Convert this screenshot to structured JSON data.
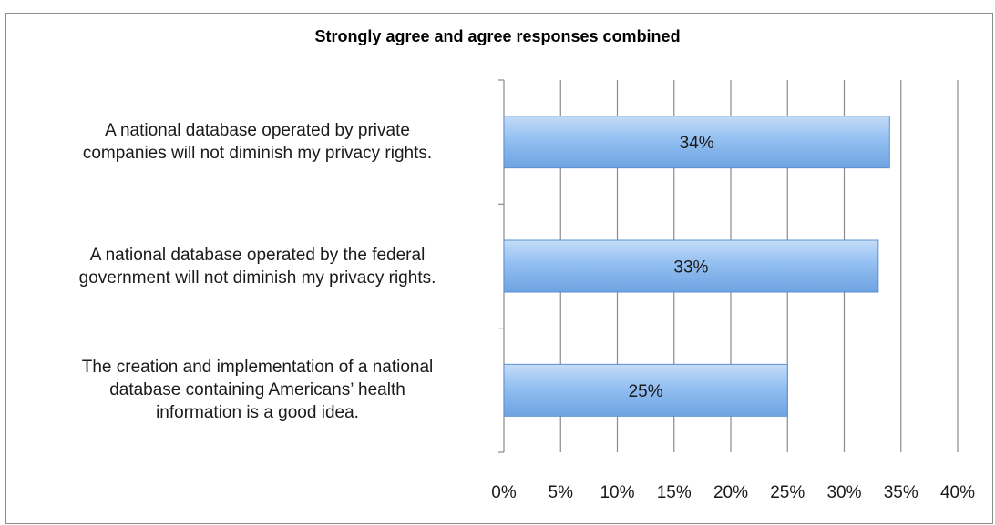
{
  "chart_data": {
    "type": "bar",
    "orientation": "horizontal",
    "title": "Strongly agree and agree responses combined",
    "categories": [
      "A national database operated by private companies will not diminish my privacy rights.",
      "A national database operated by the federal government will not diminish my privacy rights.",
      "The creation and implementation of a national database containing Americans’ health information is a good idea."
    ],
    "category_lines": [
      [
        "A national database operated by private",
        "companies will not diminish my privacy rights."
      ],
      [
        "A national database operated by the federal",
        "government will not diminish my privacy rights."
      ],
      [
        "The creation and implementation of a national",
        "database containing Americans’ health",
        "information is a good idea."
      ]
    ],
    "values": [
      34,
      33,
      25
    ],
    "data_labels": [
      "34%",
      "33%",
      "25%"
    ],
    "xlim": [
      0,
      40
    ],
    "x_ticks": [
      0,
      5,
      10,
      15,
      20,
      25,
      30,
      35,
      40
    ],
    "x_tick_labels": [
      "0%",
      "5%",
      "10%",
      "15%",
      "20%",
      "25%",
      "30%",
      "35%",
      "40%"
    ],
    "grid": true,
    "bar_color": "#8fbff2",
    "xlabel": "",
    "ylabel": ""
  }
}
